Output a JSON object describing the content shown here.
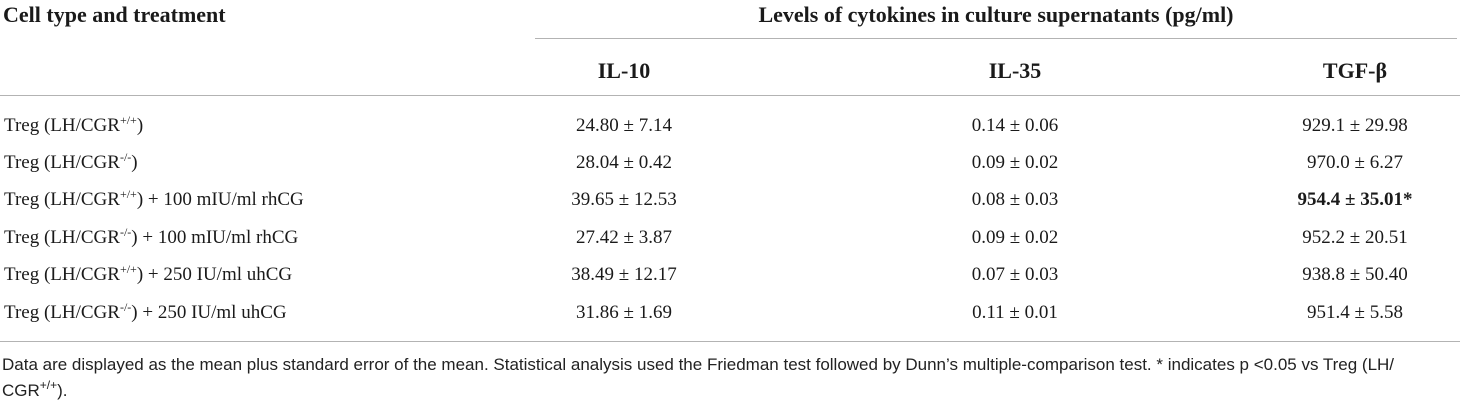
{
  "table": {
    "label_header": "Cell type and treatment",
    "group_header": "Levels of cytokines in culture supernatants (pg/ml)",
    "columns": [
      "IL-10",
      "IL-35",
      "TGF-β"
    ],
    "rows": [
      {
        "label_pre": "Treg (LH/CGR",
        "label_sup": "+/+",
        "label_post": ")",
        "values": [
          "24.80 ± 7.14",
          "0.14 ± 0.06",
          "929.1 ± 29.98"
        ],
        "bold_last": false
      },
      {
        "label_pre": "Treg (LH/CGR",
        "label_sup": "-/-",
        "label_post": ")",
        "values": [
          "28.04 ± 0.42",
          "0.09 ± 0.02",
          "970.0 ± 6.27"
        ],
        "bold_last": false
      },
      {
        "label_pre": "Treg (LH/CGR",
        "label_sup": "+/+",
        "label_post": ") + 100 mIU/ml rhCG",
        "values": [
          "39.65 ± 12.53",
          "0.08 ± 0.03",
          "954.4 ± 35.01*"
        ],
        "bold_last": true
      },
      {
        "label_pre": "Treg (LH/CGR",
        "label_sup": "-/-",
        "label_post": ") + 100 mIU/ml rhCG",
        "values": [
          "27.42 ± 3.87",
          "0.09 ± 0.02",
          "952.2 ± 20.51"
        ],
        "bold_last": false
      },
      {
        "label_pre": "Treg (LH/CGR",
        "label_sup": "+/+",
        "label_post": ") + 250 IU/ml uhCG",
        "values": [
          "38.49 ± 12.17",
          "0.07 ± 0.03",
          "938.8 ± 50.40"
        ],
        "bold_last": false
      },
      {
        "label_pre": "Treg (LH/CGR",
        "label_sup": "-/-",
        "label_post": ") + 250 IU/ml uhCG",
        "values": [
          "31.86 ± 1.69",
          "0.11 ± 0.01",
          "951.4 ± 5.58"
        ],
        "bold_last": false
      }
    ]
  },
  "footnote": {
    "text_main": "Data are displayed as the mean plus standard error of the mean. Statistical analysis used the Friedman test followed by Dunn’s multiple-comparison test. * indicates p <0.05 vs Treg (LH/",
    "text_line2_pre": "CGR",
    "text_line2_sup": "+/+",
    "text_line2_post": ")."
  }
}
